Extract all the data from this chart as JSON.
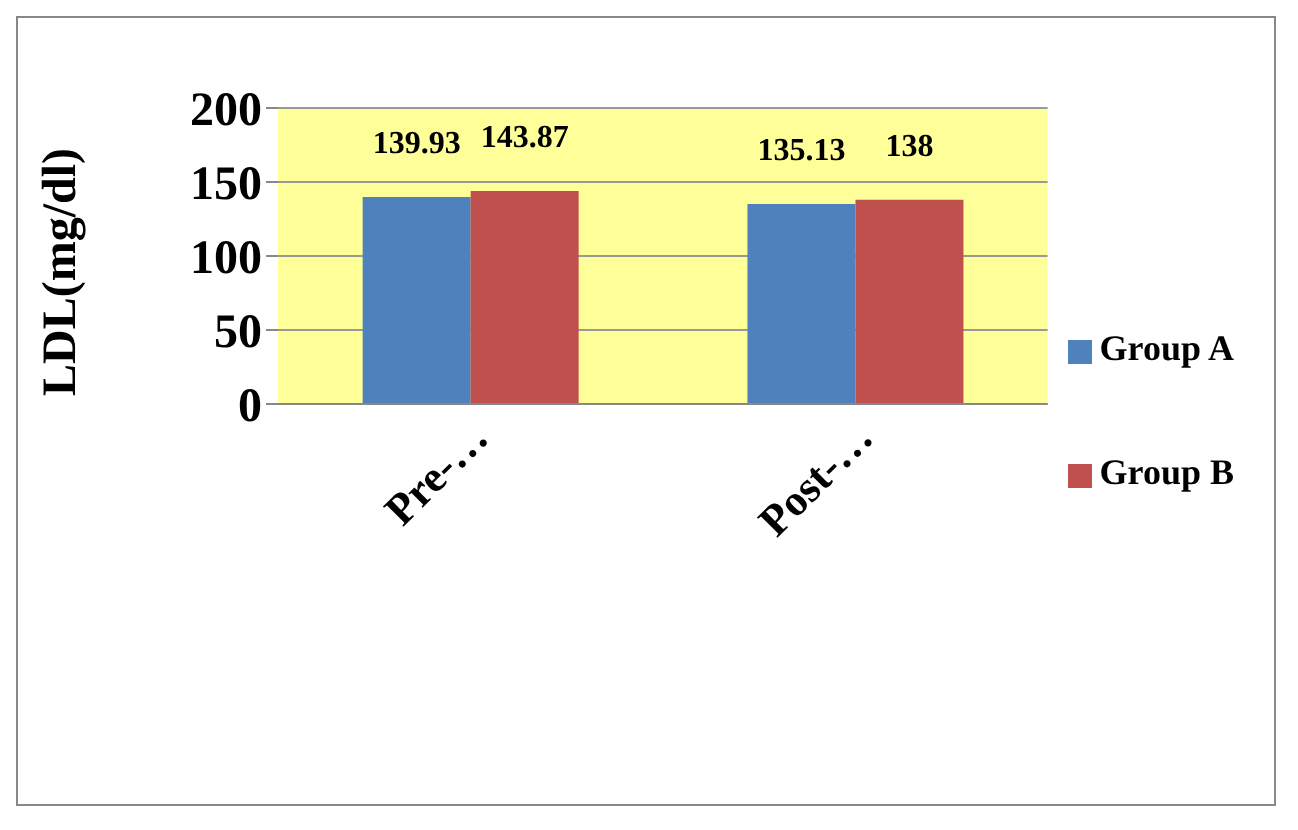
{
  "chart_data": {
    "type": "bar",
    "ylabel": "LDL(mg/dl)",
    "categories": [
      "Pre-…",
      "Post-…"
    ],
    "series": [
      {
        "name": "Group A",
        "color": "#4f81bd",
        "values": [
          139.93,
          135.13
        ]
      },
      {
        "name": "Group B",
        "color": "#c0504d",
        "values": [
          143.87,
          138
        ]
      }
    ],
    "ylim": [
      0,
      200
    ],
    "yticks": [
      0,
      50,
      100,
      150,
      200
    ],
    "grid": "y",
    "legend": "right",
    "data_labels": true
  }
}
